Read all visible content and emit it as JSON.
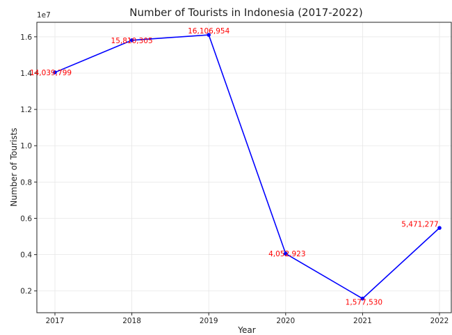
{
  "chart_data": {
    "type": "line",
    "title": "Number of Tourists in Indonesia (2017-2022)",
    "xlabel": "Year",
    "ylabel": "Number of Tourists",
    "y_offset_label": "1e7",
    "categories": [
      "2017",
      "2018",
      "2019",
      "2020",
      "2021",
      "2022"
    ],
    "values": [
      14039799,
      15810305,
      16106954,
      4052923,
      1577530,
      5471277
    ],
    "data_labels": [
      "14,039,799",
      "15,810,305",
      "16,106,954",
      "4,052,923",
      "1,577,530",
      "5,471,277"
    ],
    "y_ticks": [
      0.2,
      0.4,
      0.6,
      0.8,
      1.0,
      1.2,
      1.4,
      1.6
    ],
    "y_tick_labels": [
      "0.2",
      "0.4",
      "0.6",
      "0.8",
      "1.0",
      "1.2",
      "1.4",
      "1.6"
    ],
    "y_scale": 10000000,
    "ylim": [
      0.08,
      1.68
    ],
    "grid": true,
    "line_color": "#0000ff",
    "marker_color": "#0000ff",
    "label_color": "#ff0000"
  }
}
